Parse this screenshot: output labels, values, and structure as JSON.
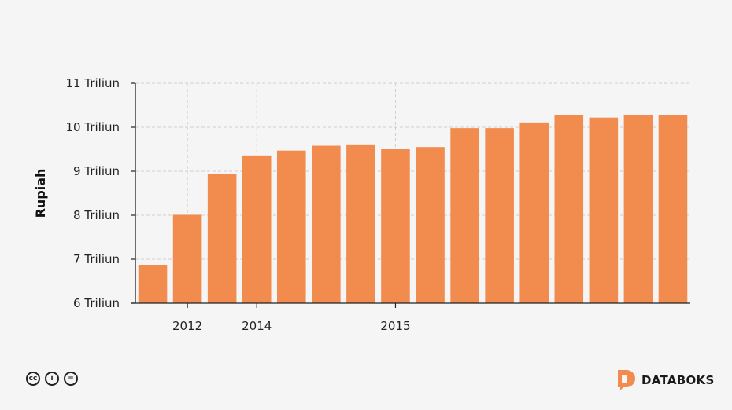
{
  "chart_data": {
    "type": "bar",
    "xlabel": "",
    "ylabel": "Rupiah",
    "ylim": [
      6,
      11
    ],
    "yticks": [
      {
        "value": 6,
        "label": "6 Triliun"
      },
      {
        "value": 7,
        "label": "7 Triliun"
      },
      {
        "value": 8,
        "label": "8 Triliun"
      },
      {
        "value": 9,
        "label": "9 Triliun"
      },
      {
        "value": 10,
        "label": "10 Triliun"
      },
      {
        "value": 11,
        "label": "11 Triliun"
      }
    ],
    "xticks": [
      {
        "bar_index": 1,
        "label": "2012"
      },
      {
        "bar_index": 3,
        "label": "2014"
      },
      {
        "bar_index": 7,
        "label": "2015"
      }
    ],
    "values": [
      6.86,
      8.01,
      8.94,
      9.36,
      9.47,
      9.58,
      9.61,
      9.5,
      9.55,
      9.98,
      9.98,
      10.11,
      10.27,
      10.22,
      10.27,
      10.27
    ],
    "grid": true,
    "bar_color": "#f28b4e"
  },
  "footer": {
    "license_icons": [
      "creative-commons-icon",
      "attribution-icon",
      "no-derivatives-icon"
    ],
    "license_glyphs": [
      "cc",
      "i",
      "="
    ],
    "brand_name": "DATABOKS",
    "brand_color": "#f28b4e"
  }
}
